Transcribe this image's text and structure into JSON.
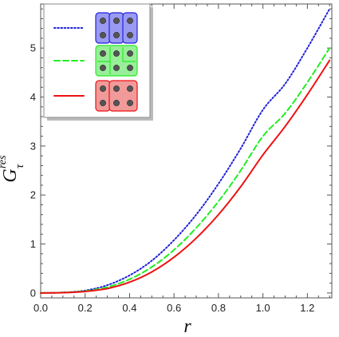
{
  "chart_data": {
    "type": "line",
    "title": "",
    "xlabel": "r",
    "ylabel": "G",
    "ylabel_superscript": "res",
    "ylabel_subscript": "τ",
    "xlim": [
      0.0,
      1.31
    ],
    "ylim": [
      -0.1,
      5.9
    ],
    "xticks": [
      "0.0",
      "0.2",
      "0.4",
      "0.6",
      "0.8",
      "1.0",
      "1.2"
    ],
    "yticks": [
      "0",
      "1",
      "2",
      "3",
      "4",
      "5"
    ],
    "grid": false,
    "legend_placement": "top-left",
    "series": [
      {
        "style": "dotted",
        "color": "#2222dd",
        "fill": "#9a9af2",
        "icon": "three-vertical-pairs",
        "x": [
          0.0,
          0.1,
          0.2,
          0.3,
          0.4,
          0.5,
          0.6,
          0.7,
          0.8,
          0.9,
          1.0,
          1.1,
          1.2,
          1.3
        ],
        "y": [
          0.0,
          0.01,
          0.05,
          0.16,
          0.36,
          0.66,
          1.08,
          1.6,
          2.23,
          2.95,
          3.74,
          4.27,
          5.0,
          5.8
        ]
      },
      {
        "style": "dashed",
        "color": "#22ee22",
        "fill": "#99ee99",
        "icon": "mixed-partition",
        "x": [
          0.0,
          0.1,
          0.2,
          0.3,
          0.4,
          0.5,
          0.6,
          0.7,
          0.8,
          0.9,
          1.0,
          1.1,
          1.2,
          1.3
        ],
        "y": [
          0.0,
          0.01,
          0.04,
          0.12,
          0.28,
          0.53,
          0.88,
          1.33,
          1.87,
          2.5,
          3.2,
          3.67,
          4.3,
          5.0
        ]
      },
      {
        "style": "solid",
        "color": "#ee1111",
        "fill": "#f09a9a",
        "icon": "pair-and-quad",
        "x": [
          0.0,
          0.1,
          0.2,
          0.3,
          0.4,
          0.5,
          0.6,
          0.7,
          0.8,
          0.9,
          1.0,
          1.1,
          1.2,
          1.3
        ],
        "y": [
          0.0,
          0.005,
          0.03,
          0.09,
          0.22,
          0.43,
          0.73,
          1.12,
          1.6,
          2.17,
          2.82,
          3.4,
          4.05,
          4.75
        ]
      }
    ]
  }
}
